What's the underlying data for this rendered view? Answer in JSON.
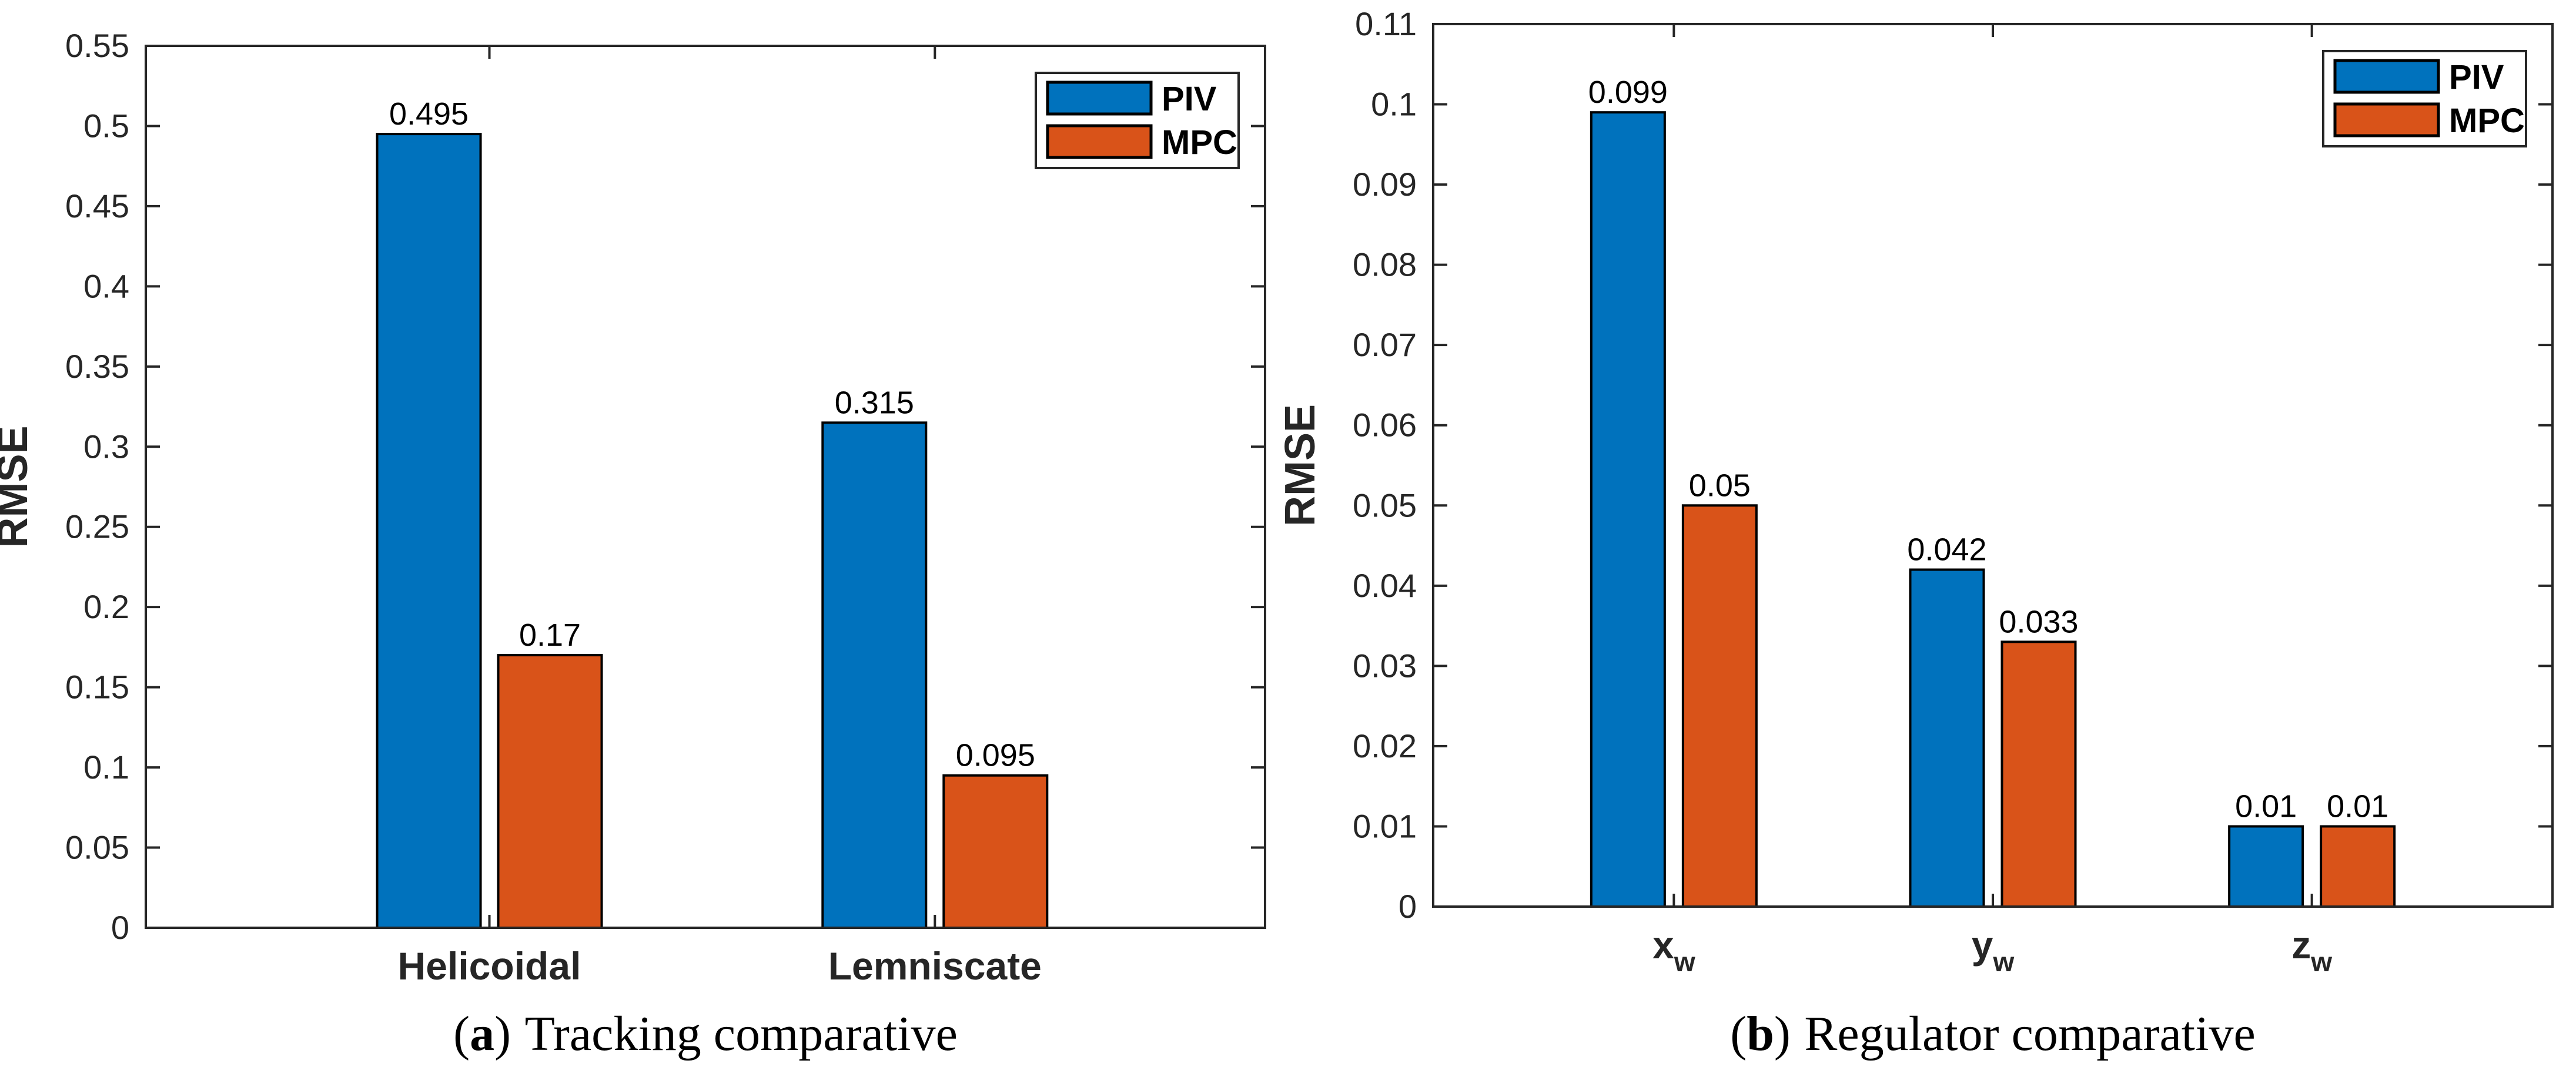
{
  "figure": {
    "background": "#ffffff",
    "colors": {
      "piv": "#0072BD",
      "mpc": "#D95319",
      "axis": "#262626",
      "bar_edge": "#000000",
      "text": "#000000"
    },
    "captions": [
      {
        "open": "(",
        "letter": "a",
        "close": ")",
        "text": "Tracking comparative"
      },
      {
        "open": "(",
        "letter": "b",
        "close": ")",
        "text": "Regulator comparative"
      }
    ]
  },
  "chart_data": [
    {
      "type": "bar",
      "title": "(a) Tracking comparative",
      "xlabel": "",
      "ylabel": "RMSE",
      "ylim": [
        0,
        0.55
      ],
      "ytick_values": [
        0,
        0.05,
        0.1,
        0.15,
        0.2,
        0.25,
        0.3,
        0.35,
        0.4,
        0.45,
        0.5,
        0.55
      ],
      "ytick_labels": [
        "0",
        "0.05",
        "0.1",
        "0.15",
        "0.2",
        "0.25",
        "0.3",
        "0.35",
        "0.4",
        "0.45",
        "0.5",
        "0.55"
      ],
      "categories": [
        {
          "base": "Helicoidal",
          "sub": ""
        },
        {
          "base": "Lemniscate",
          "sub": ""
        }
      ],
      "series": [
        {
          "name": "PIV",
          "color_key": "piv",
          "values": [
            0.495,
            0.315
          ],
          "value_labels": [
            "0.495",
            "0.315"
          ]
        },
        {
          "name": "MPC",
          "color_key": "mpc",
          "values": [
            0.17,
            0.095
          ],
          "value_labels": [
            "0.17",
            "0.095"
          ]
        }
      ],
      "legend": {
        "position": "northeast",
        "entries": [
          "PIV",
          "MPC"
        ]
      },
      "grid": false
    },
    {
      "type": "bar",
      "title": "(b) Regulator comparative",
      "xlabel": "",
      "ylabel": "RMSE",
      "ylim": [
        0,
        0.11
      ],
      "ytick_values": [
        0,
        0.01,
        0.02,
        0.03,
        0.04,
        0.05,
        0.06,
        0.07,
        0.08,
        0.09,
        0.1,
        0.11
      ],
      "ytick_labels": [
        "0",
        "0.01",
        "0.02",
        "0.03",
        "0.04",
        "0.05",
        "0.06",
        "0.07",
        "0.08",
        "0.09",
        "0.1",
        "0.11"
      ],
      "categories": [
        {
          "base": "x",
          "sub": "w"
        },
        {
          "base": "y",
          "sub": "w"
        },
        {
          "base": "z",
          "sub": "w"
        }
      ],
      "series": [
        {
          "name": "PIV",
          "color_key": "piv",
          "values": [
            0.099,
            0.042,
            0.01
          ],
          "value_labels": [
            "0.099",
            "0.042",
            "0.01"
          ]
        },
        {
          "name": "MPC",
          "color_key": "mpc",
          "values": [
            0.05,
            0.033,
            0.01
          ],
          "value_labels": [
            "0.05",
            "0.033",
            "0.01"
          ]
        }
      ],
      "legend": {
        "position": "northeast",
        "entries": [
          "PIV",
          "MPC"
        ]
      },
      "grid": false
    }
  ]
}
